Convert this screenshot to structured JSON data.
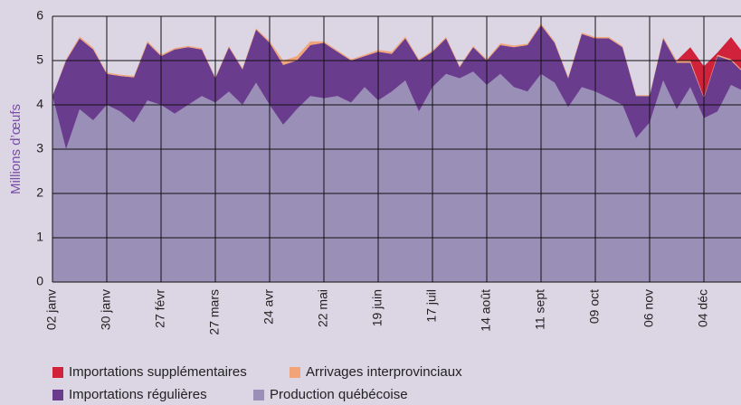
{
  "chart_data": {
    "type": "stacked_area",
    "y_axis_label": "Millions d’œufs",
    "categories": [
      "02 janv",
      null,
      null,
      null,
      "30 janv",
      null,
      null,
      null,
      "27 févr",
      null,
      null,
      null,
      "27 mars",
      null,
      null,
      null,
      "24 avr",
      null,
      null,
      null,
      "22 mai",
      null,
      null,
      null,
      "19 juin",
      null,
      null,
      null,
      "17 juil",
      null,
      null,
      null,
      "14 août",
      null,
      null,
      null,
      "11 sept",
      null,
      null,
      null,
      "09 oct",
      null,
      null,
      null,
      "06 nov",
      null,
      null,
      null,
      "04 déc",
      null,
      null,
      null
    ],
    "series": [
      {
        "name": "Production québécoise",
        "color": "#9a8fb6",
        "values": [
          4.2,
          3.0,
          3.9,
          3.65,
          4.0,
          3.85,
          3.6,
          4.1,
          4.0,
          3.8,
          4.0,
          4.2,
          4.05,
          4.3,
          4.0,
          4.5,
          4.0,
          3.55,
          3.9,
          4.2,
          4.15,
          4.2,
          4.05,
          4.4,
          4.1,
          4.3,
          4.55,
          3.85,
          4.4,
          4.7,
          4.6,
          4.75,
          4.45,
          4.7,
          4.4,
          4.3,
          4.7,
          4.5,
          3.95,
          4.4,
          4.3,
          4.15,
          4.0,
          3.25,
          3.6,
          4.55,
          3.9,
          4.4,
          3.7,
          3.85,
          4.45,
          4.3
        ]
      },
      {
        "name": "Importations régulières",
        "color": "#6a3c8e",
        "values": [
          0,
          2.0,
          1.6,
          1.6,
          0.7,
          0.8,
          1.02,
          1.3,
          1.1,
          1.45,
          1.3,
          1.05,
          0.55,
          1.0,
          0.8,
          1.2,
          1.4,
          1.35,
          1.1,
          1.15,
          1.25,
          1.0,
          0.95,
          0.7,
          1.1,
          0.85,
          0.95,
          1.15,
          0.8,
          0.8,
          0.25,
          0.55,
          0.55,
          0.65,
          0.9,
          1.05,
          1.1,
          0.9,
          0.65,
          1.2,
          1.2,
          1.35,
          1.3,
          0.95,
          0.6,
          0.95,
          1.05,
          0.55,
          0.45,
          1.25,
          0.55,
          0.4
        ]
      },
      {
        "name": "Arrivages interprovinciaux",
        "color": "#f2a478",
        "values": [
          0,
          0.03,
          0.04,
          0.04,
          0.03,
          0.03,
          0.03,
          0.04,
          0.03,
          0.03,
          0.03,
          0.03,
          0.02,
          0.03,
          0.03,
          0.03,
          0.04,
          0.1,
          0.1,
          0.08,
          0.03,
          0.03,
          0.03,
          0.03,
          0.04,
          0.05,
          0.04,
          0.03,
          0.03,
          0.03,
          0.03,
          0.03,
          0.03,
          0.04,
          0.04,
          0.03,
          0.04,
          0.03,
          0.03,
          0.03,
          0.03,
          0.03,
          0.03,
          0.02,
          0.02,
          0.03,
          0.05,
          0.05,
          0.02,
          0.03,
          0.03,
          0.03
        ]
      },
      {
        "name": "Importations supplémentaires",
        "color": "#d0223a",
        "values": [
          0,
          0,
          0,
          0,
          0,
          0,
          0,
          0,
          0,
          0,
          0,
          0,
          0,
          0,
          0,
          0,
          0,
          0,
          0,
          0,
          0,
          0,
          0,
          0,
          0,
          0,
          0,
          0,
          0,
          0,
          0,
          0,
          0,
          0,
          0,
          0,
          0,
          0,
          0,
          0,
          0,
          0,
          0,
          0,
          0,
          0,
          0,
          0.3,
          0.7,
          0.05,
          0.5,
          0.4
        ]
      }
    ],
    "legend_order": [
      3,
      2,
      1,
      0
    ],
    "ylim": [
      0,
      6
    ],
    "yticks": [
      0,
      1,
      2,
      3,
      4,
      5,
      6
    ],
    "grid": true
  }
}
